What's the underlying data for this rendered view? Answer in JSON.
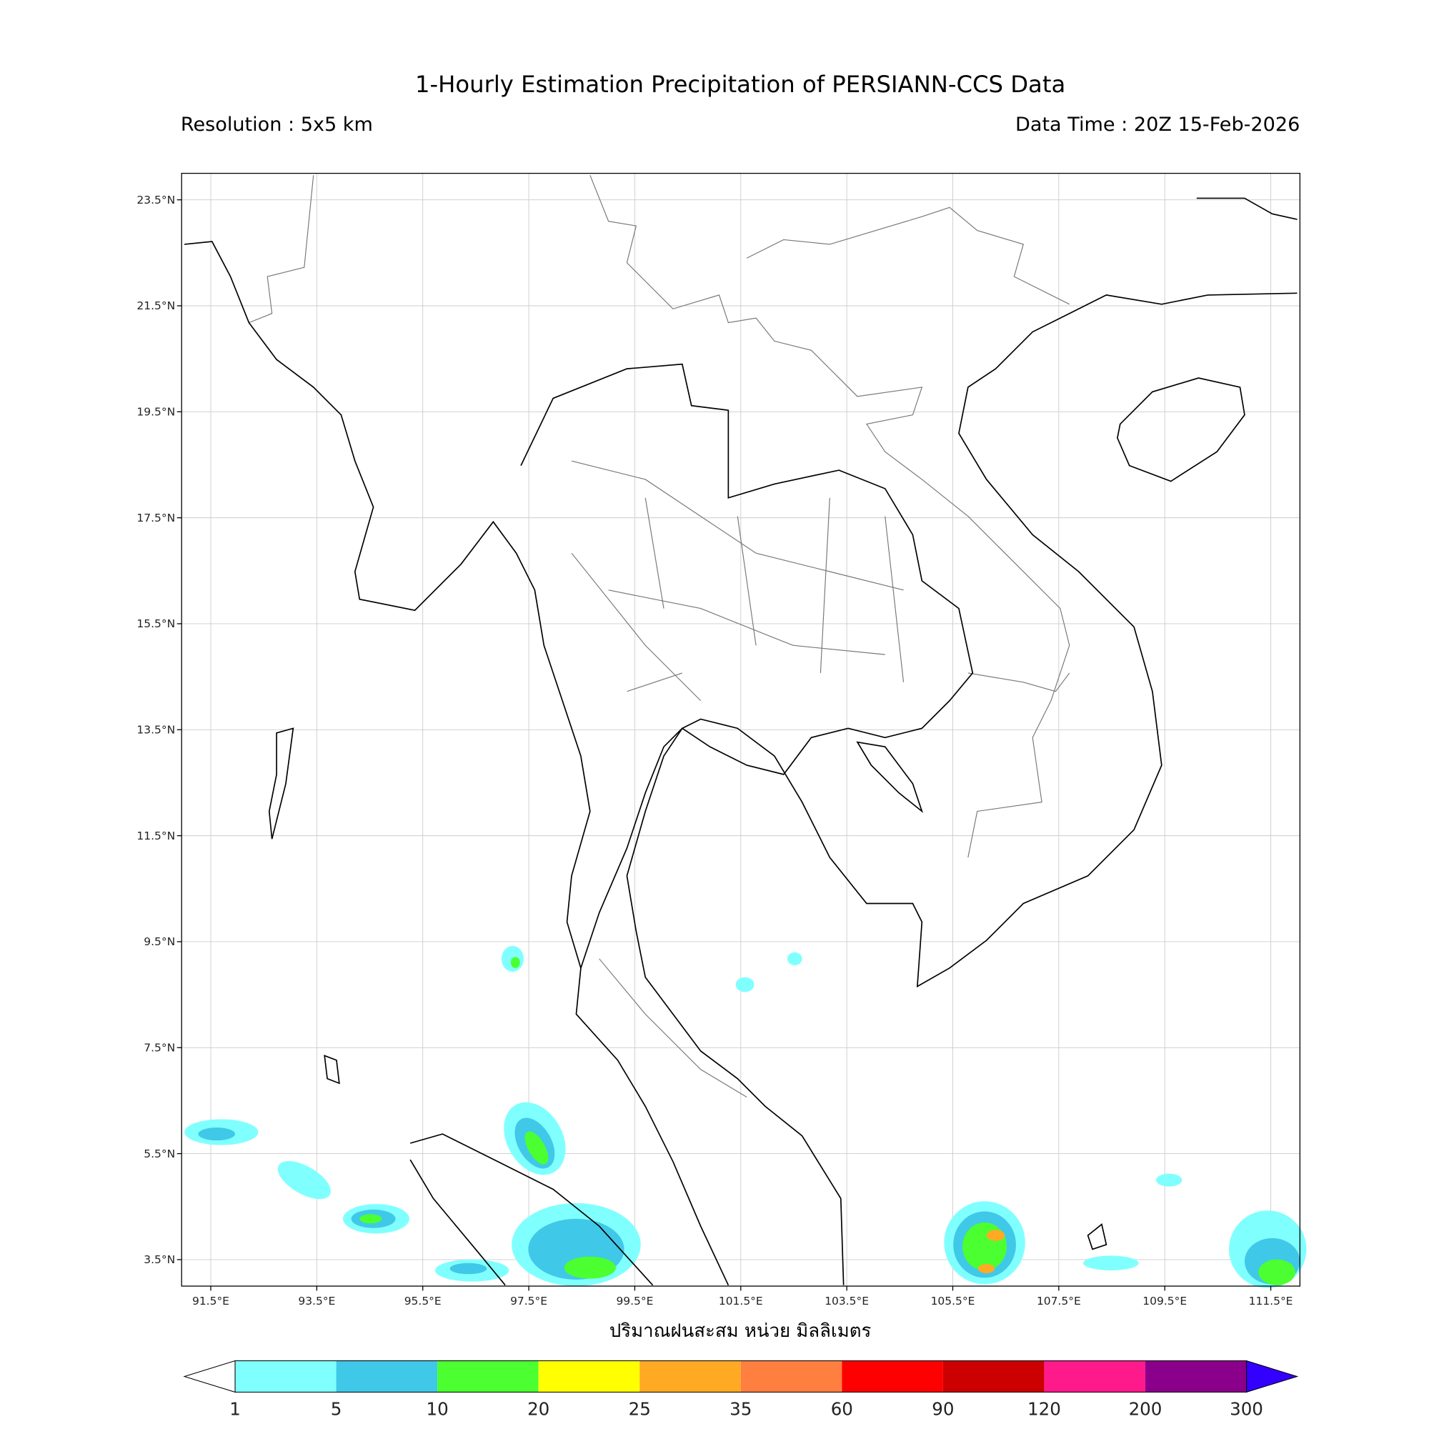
{
  "title": "1-Hourly Estimation Precipitation of PERSIANN-CCS Data",
  "resolution": "Resolution : 5x5 km",
  "data_time": "Data Time : 20Z 15-Feb-2026",
  "x_axis_label": "ปริมาณฝนสะสม หน่วย มิลลิเมตร",
  "map": {
    "lon_range": [
      90.95,
      112.05
    ],
    "lat_range": [
      3.0,
      24.0
    ],
    "lon_ticks": [
      {
        "value": 91.5,
        "label": "91.5°E"
      },
      {
        "value": 93.5,
        "label": "93.5°E"
      },
      {
        "value": 95.5,
        "label": "95.5°E"
      },
      {
        "value": 97.5,
        "label": "97.5°E"
      },
      {
        "value": 99.5,
        "label": "99.5°E"
      },
      {
        "value": 101.5,
        "label": "101.5°E"
      },
      {
        "value": 103.5,
        "label": "103.5°E"
      },
      {
        "value": 105.5,
        "label": "105.5°E"
      },
      {
        "value": 107.5,
        "label": "107.5°E"
      },
      {
        "value": 109.5,
        "label": "109.5°E"
      },
      {
        "value": 111.5,
        "label": "111.5°E"
      }
    ],
    "lat_ticks": [
      {
        "value": 3.5,
        "label": "3.5°N"
      },
      {
        "value": 5.5,
        "label": "5.5°N"
      },
      {
        "value": 7.5,
        "label": "7.5°N"
      },
      {
        "value": 9.5,
        "label": "9.5°N"
      },
      {
        "value": 11.5,
        "label": "11.5°N"
      },
      {
        "value": 13.5,
        "label": "13.5°N"
      },
      {
        "value": 15.5,
        "label": "15.5°N"
      },
      {
        "value": 17.5,
        "label": "17.5°N"
      },
      {
        "value": 19.5,
        "label": "19.5°N"
      },
      {
        "value": 21.5,
        "label": "21.5°N"
      },
      {
        "value": 23.5,
        "label": "23.5°N"
      }
    ],
    "grid": true
  },
  "colorbar": {
    "levels": [
      1,
      5,
      10,
      20,
      25,
      35,
      60,
      90,
      120,
      200,
      300
    ],
    "colors": [
      "#80ffff",
      "#40c8e8",
      "#4cff30",
      "#ffff00",
      "#ffaa22",
      "#ff7f40",
      "#ff0000",
      "#cc0000",
      "#ff1a8c",
      "#8b008b"
    ],
    "under_color": "#ffffff",
    "over_color": "#3300ff"
  }
}
